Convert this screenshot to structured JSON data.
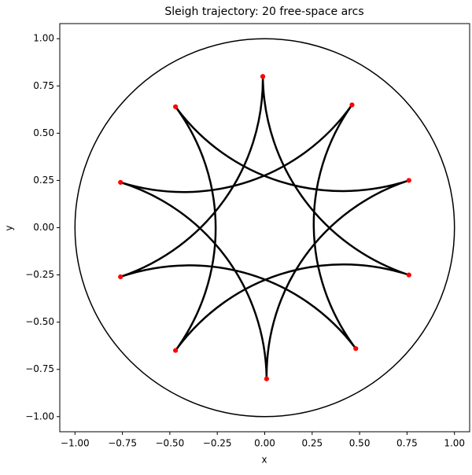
{
  "chart_data": {
    "type": "trajectory",
    "title": "Sleigh trajectory: 20 free-space arcs",
    "xlabel": "x",
    "ylabel": "y",
    "xlim": [
      -1.08,
      1.08
    ],
    "ylim": [
      -1.08,
      1.08
    ],
    "xticks": [
      {
        "value": -1,
        "label": "−1.00"
      },
      {
        "value": -0.75,
        "label": "−0.75"
      },
      {
        "value": -0.5,
        "label": "−0.50"
      },
      {
        "value": -0.25,
        "label": "−0.25"
      },
      {
        "value": 0,
        "label": "0.00"
      },
      {
        "value": 0.25,
        "label": "0.25"
      },
      {
        "value": 0.5,
        "label": "0.50"
      },
      {
        "value": 0.75,
        "label": "0.75"
      },
      {
        "value": 1,
        "label": "1.00"
      }
    ],
    "yticks": [
      {
        "value": -1,
        "label": "−1.00"
      },
      {
        "value": -0.75,
        "label": "−0.75"
      },
      {
        "value": -0.5,
        "label": "−0.50"
      },
      {
        "value": -0.25,
        "label": "−0.25"
      },
      {
        "value": 0,
        "label": "0.00"
      },
      {
        "value": 0.25,
        "label": "0.25"
      },
      {
        "value": 0.5,
        "label": "0.50"
      },
      {
        "value": 0.75,
        "label": "0.75"
      },
      {
        "value": 1,
        "label": "1.00"
      }
    ],
    "boundary_radius": 1,
    "boundary_color": "#000000",
    "series": [
      {
        "color": "#000000",
        "marker_color": "#ff0000",
        "x": [
          -0.01,
          0.76,
          -0.47,
          -0.47,
          0.76,
          0.01,
          -0.76,
          0.46,
          0.48,
          -0.76,
          -0.01,
          0.76,
          -0.47,
          -0.47,
          0.76,
          0.01,
          -0.76,
          0.46,
          0.48,
          -0.76,
          -0.01
        ],
        "y": [
          0.8,
          -0.25,
          -0.65,
          0.64,
          0.25,
          -0.8,
          0.24,
          0.65,
          -0.64,
          -0.26,
          0.8,
          -0.25,
          -0.65,
          0.64,
          0.25,
          -0.8,
          0.24,
          0.65,
          -0.64,
          -0.26,
          0.8
        ]
      }
    ]
  }
}
